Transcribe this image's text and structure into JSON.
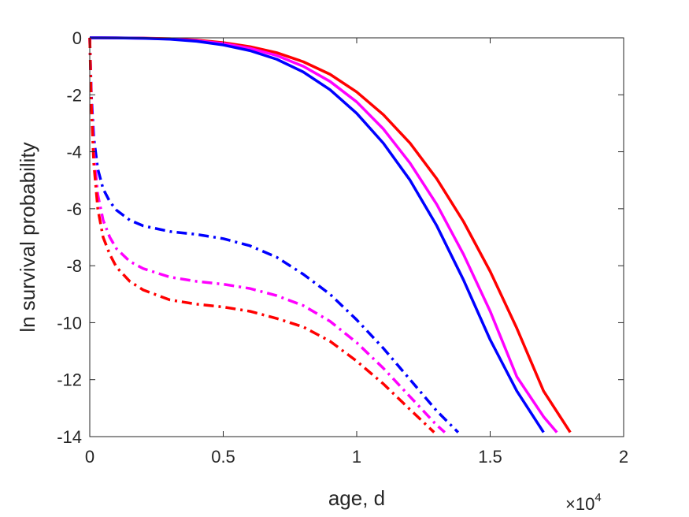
{
  "chart_data": {
    "type": "line",
    "xlabel": "age, d",
    "ylabel": "ln survival probability",
    "x_exponent_label": {
      "base": "×10",
      "exponent": "4"
    },
    "xlim": [
      0,
      20000
    ],
    "ylim": [
      -14,
      0
    ],
    "x_ticks": [
      0,
      5000,
      10000,
      15000,
      20000
    ],
    "x_tick_labels": [
      "0",
      "0.5",
      "1",
      "1.5",
      "2"
    ],
    "y_ticks": [
      0,
      -2,
      -4,
      -6,
      -8,
      -10,
      -12,
      -14
    ],
    "y_tick_labels": [
      "0",
      "-2",
      "-4",
      "-6",
      "-8",
      "-10",
      "-12",
      "-14"
    ],
    "grid": false,
    "box": true,
    "series": [
      {
        "color": "#ff0000",
        "style": "solid",
        "x": [
          0,
          1000,
          2000,
          3000,
          4000,
          5000,
          6000,
          7000,
          8000,
          9000,
          10000,
          11000,
          12000,
          13000,
          14000,
          15000,
          16000,
          17000,
          18000
        ],
        "y": [
          0,
          -0.002,
          -0.01,
          -0.03,
          -0.08,
          -0.17,
          -0.31,
          -0.52,
          -0.84,
          -1.28,
          -1.9,
          -2.7,
          -3.7,
          -4.95,
          -6.45,
          -8.2,
          -10.2,
          -12.4,
          -13.85
        ]
      },
      {
        "color": "#ff00ff",
        "style": "solid",
        "x": [
          0,
          1000,
          2000,
          3000,
          4000,
          5000,
          6000,
          7000,
          8000,
          9000,
          10000,
          11000,
          12000,
          13000,
          14000,
          15000,
          16000,
          17000,
          17500
        ],
        "y": [
          0,
          -0.003,
          -0.013,
          -0.04,
          -0.1,
          -0.2,
          -0.37,
          -0.62,
          -1.0,
          -1.53,
          -2.25,
          -3.2,
          -4.4,
          -5.85,
          -7.6,
          -9.6,
          -11.9,
          -13.3,
          -13.85
        ]
      },
      {
        "color": "#0000ff",
        "style": "solid",
        "x": [
          0,
          1000,
          2000,
          3000,
          4000,
          5000,
          6000,
          7000,
          8000,
          9000,
          10000,
          11000,
          12000,
          13000,
          14000,
          15000,
          16000,
          17000
        ],
        "y": [
          0,
          -0.004,
          -0.017,
          -0.05,
          -0.12,
          -0.25,
          -0.45,
          -0.75,
          -1.2,
          -1.82,
          -2.65,
          -3.7,
          -5.0,
          -6.6,
          -8.5,
          -10.6,
          -12.4,
          -13.85
        ]
      },
      {
        "color": "#0000ff",
        "style": "dashdot",
        "x": [
          0,
          60,
          150,
          300,
          500,
          750,
          1000,
          1500,
          2000,
          3000,
          4000,
          5000,
          6000,
          7000,
          8000,
          9000,
          10000,
          11000,
          12000,
          13000,
          13800
        ],
        "y": [
          0,
          -2.0,
          -3.5,
          -4.6,
          -5.3,
          -5.75,
          -6.05,
          -6.4,
          -6.6,
          -6.8,
          -6.9,
          -7.05,
          -7.3,
          -7.7,
          -8.3,
          -9.0,
          -9.9,
          -10.9,
          -12.0,
          -13.1,
          -13.85
        ]
      },
      {
        "color": "#ff00ff",
        "style": "dashdot",
        "x": [
          0,
          60,
          150,
          300,
          500,
          750,
          1000,
          1500,
          2000,
          3000,
          4000,
          5000,
          6000,
          7000,
          8000,
          9000,
          10000,
          11000,
          12000,
          13000,
          13300
        ],
        "y": [
          0,
          -2.2,
          -4.0,
          -5.5,
          -6.4,
          -7.0,
          -7.4,
          -7.85,
          -8.1,
          -8.4,
          -8.55,
          -8.65,
          -8.8,
          -9.05,
          -9.4,
          -9.95,
          -10.7,
          -11.6,
          -12.6,
          -13.6,
          -13.85
        ]
      },
      {
        "color": "#ff0000",
        "style": "dashdot",
        "x": [
          0,
          60,
          150,
          300,
          500,
          750,
          1000,
          1500,
          2000,
          3000,
          4000,
          5000,
          6000,
          7000,
          8000,
          9000,
          10000,
          11000,
          12000,
          12900
        ],
        "y": [
          0,
          -2.4,
          -4.4,
          -6.0,
          -7.0,
          -7.6,
          -8.05,
          -8.55,
          -8.85,
          -9.2,
          -9.35,
          -9.45,
          -9.6,
          -9.85,
          -10.15,
          -10.65,
          -11.35,
          -12.15,
          -13.05,
          -13.85
        ]
      }
    ]
  }
}
